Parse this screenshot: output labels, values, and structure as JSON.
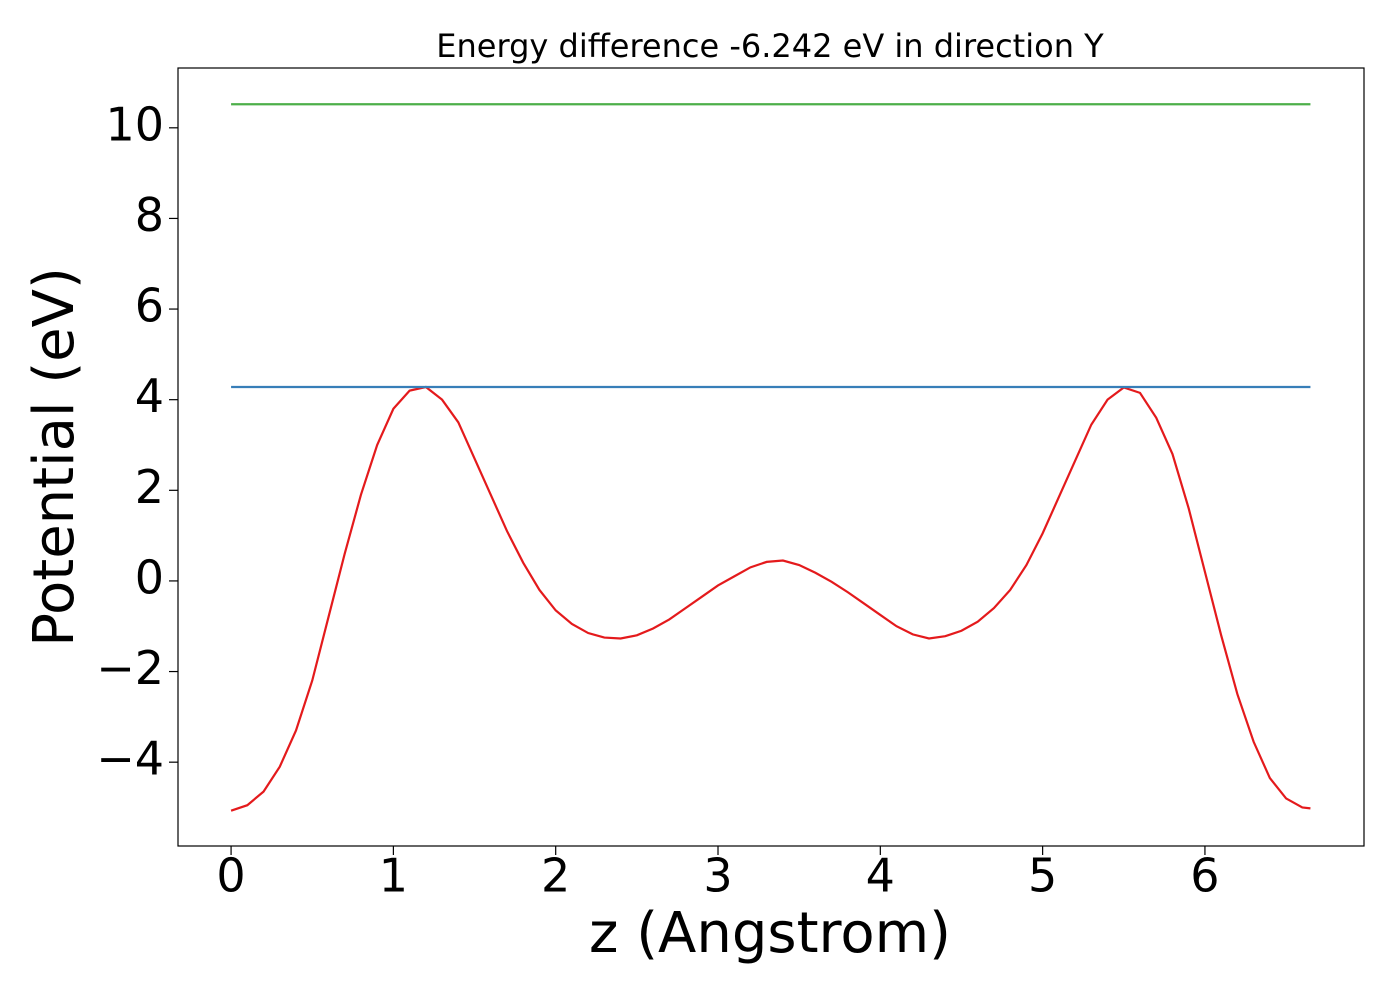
{
  "chart_data": {
    "type": "line",
    "title": "Energy difference -6.242 eV in direction Y",
    "xlabel": "z (Angstrom)",
    "ylabel": "Potential (eV)",
    "xlim": [
      -0.327,
      6.98
    ],
    "ylim": [
      -5.85,
      11.32
    ],
    "xticks": [
      0,
      1,
      2,
      3,
      4,
      5,
      6
    ],
    "yticks": [
      {
        "value": -4,
        "label": "−4"
      },
      {
        "value": -2,
        "label": "−2"
      },
      0,
      2,
      4,
      6,
      8,
      10
    ],
    "grid": false,
    "series": [
      {
        "color": "#e41a1c",
        "x": [
          0,
          0.1,
          0.2,
          0.3,
          0.4,
          0.5,
          0.6,
          0.7,
          0.8,
          0.9,
          1.0,
          1.1,
          1.2,
          1.3,
          1.4,
          1.5,
          1.6,
          1.7,
          1.8,
          1.9,
          2.0,
          2.1,
          2.2,
          2.3,
          2.4,
          2.5,
          2.6,
          2.7,
          2.8,
          2.9,
          3.0,
          3.1,
          3.2,
          3.3,
          3.4,
          3.5,
          3.6,
          3.7,
          3.8,
          3.9,
          4.0,
          4.1,
          4.2,
          4.3,
          4.4,
          4.5,
          4.6,
          4.7,
          4.8,
          4.9,
          5.0,
          5.1,
          5.2,
          5.3,
          5.4,
          5.5,
          5.6,
          5.7,
          5.8,
          5.9,
          6.0,
          6.1,
          6.2,
          6.3,
          6.4,
          6.5,
          6.6,
          6.65
        ],
        "values": [
          -5.07,
          -4.95,
          -4.65,
          -4.1,
          -3.3,
          -2.2,
          -0.8,
          0.6,
          1.9,
          3.0,
          3.8,
          4.2,
          4.28,
          4.0,
          3.5,
          2.7,
          1.9,
          1.1,
          0.4,
          -0.2,
          -0.65,
          -0.95,
          -1.15,
          -1.25,
          -1.27,
          -1.2,
          -1.05,
          -0.85,
          -0.6,
          -0.35,
          -0.1,
          0.1,
          0.3,
          0.42,
          0.45,
          0.35,
          0.18,
          -0.02,
          -0.25,
          -0.5,
          -0.75,
          -1.0,
          -1.18,
          -1.27,
          -1.22,
          -1.1,
          -0.9,
          -0.6,
          -0.2,
          0.35,
          1.05,
          1.85,
          2.65,
          3.45,
          4.0,
          4.27,
          4.15,
          3.6,
          2.8,
          1.6,
          0.2,
          -1.2,
          -2.5,
          -3.55,
          -4.35,
          -4.8,
          -5.0,
          -5.02
        ]
      },
      {
        "color": "#377eb8",
        "x": [
          0,
          6.65
        ],
        "values": [
          4.28,
          4.28
        ]
      },
      {
        "color": "#4daf4a",
        "x": [
          0,
          6.65
        ],
        "values": [
          10.52,
          10.52
        ]
      }
    ]
  }
}
